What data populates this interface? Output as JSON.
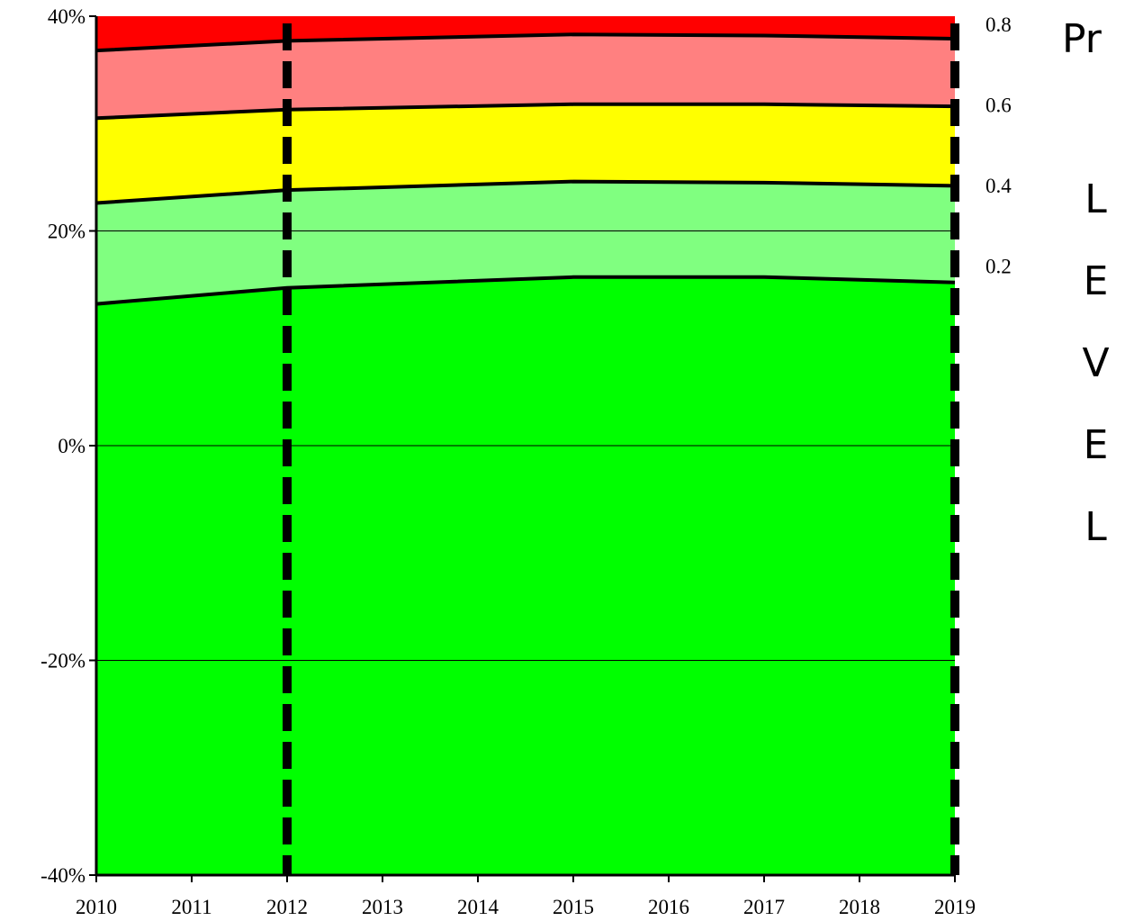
{
  "chart_data": {
    "type": "band-area",
    "x": [
      2010,
      2012,
      2015,
      2017,
      2019
    ],
    "series": [
      {
        "color": "#00ff00",
        "values": [
          13.2,
          14.7,
          15.7,
          15.7,
          15.2
        ]
      },
      {
        "color": "#80ff80",
        "values": [
          22.6,
          23.8,
          24.6,
          24.5,
          24.2
        ]
      },
      {
        "color": "#ffff00",
        "values": [
          30.5,
          31.3,
          31.8,
          31.8,
          31.6
        ]
      },
      {
        "color": "#ff8080",
        "values": [
          36.8,
          37.7,
          38.3,
          38.2,
          37.9
        ]
      }
    ],
    "top_color": "#ff0000",
    "xlim": [
      2010,
      2019
    ],
    "xticks": [
      2010,
      2011,
      2012,
      2013,
      2014,
      2015,
      2016,
      2017,
      2018,
      2019
    ],
    "ylim": [
      -40,
      40
    ],
    "yticks": [
      {
        "value": -40,
        "label": "-40%"
      },
      {
        "value": -20,
        "label": "-20%"
      },
      {
        "value": 0,
        "label": "0%"
      },
      {
        "value": 20,
        "label": "20%"
      },
      {
        "value": 40,
        "label": "40%"
      }
    ],
    "y2lim": [
      -1.31,
      0.82
    ],
    "y2ticks": [
      0.2,
      0.4,
      0.6,
      0.8
    ],
    "grid": true,
    "vlines": [
      2012,
      2019
    ],
    "side_title": "Pr",
    "side_label": "LEVEL"
  }
}
